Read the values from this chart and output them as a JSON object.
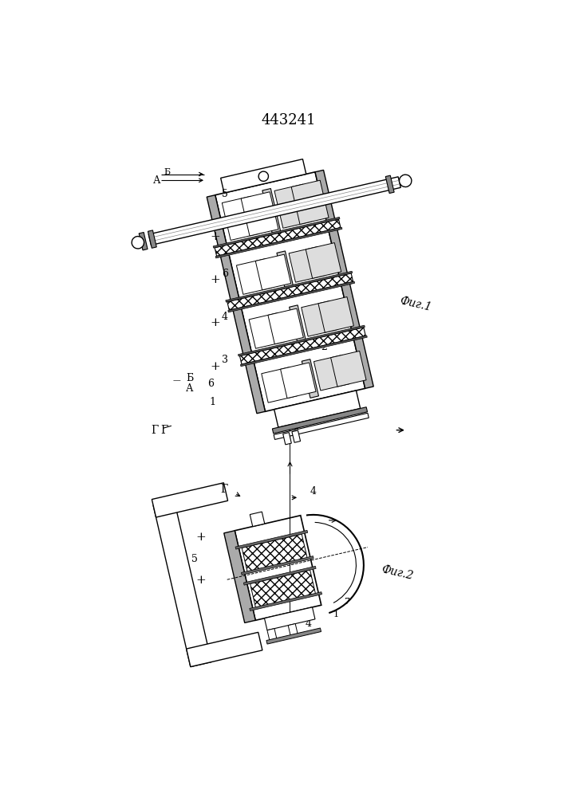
{
  "title": "443241",
  "fig1_label": "Фиг.1",
  "fig2_label": "Фиг.2",
  "background_color": "#ffffff",
  "line_color": "#000000",
  "fig_width": 7.07,
  "fig_height": 10.0
}
